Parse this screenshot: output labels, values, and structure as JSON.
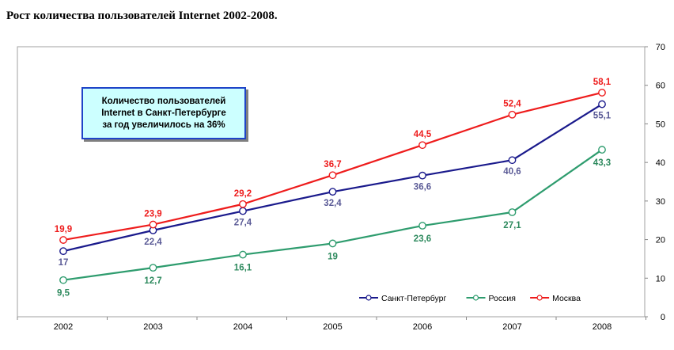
{
  "page": {
    "title": "Рост количества пользователей Internet 2002-2008."
  },
  "callout": {
    "lines": [
      "Количество пользователей",
      "Internet в Санкт-Петербурге",
      "за год увеличилось на 36%"
    ]
  },
  "chart_data": {
    "type": "line",
    "x": [
      "2002",
      "2003",
      "2004",
      "2005",
      "2006",
      "2007",
      "2008"
    ],
    "ylim": [
      0,
      70
    ],
    "yticks": [
      0,
      10,
      20,
      30,
      40,
      50,
      60,
      70
    ],
    "y_axis_side": "right",
    "grid": false,
    "legend_placement": "bottom-right",
    "series": [
      {
        "name": "Санкт-Петербург",
        "color": "#1a1a8c",
        "label_color": "#5a5a96",
        "values": [
          17,
          22.4,
          27.4,
          32.4,
          36.6,
          40.6,
          55.1
        ],
        "labels": [
          "17",
          "22,4",
          "27,4",
          "32,4",
          "36,6",
          "40,6",
          "55,1"
        ]
      },
      {
        "name": "Россия",
        "color": "#2e9c6e",
        "label_color": "#2e8a5e",
        "values": [
          9.5,
          12.7,
          16.1,
          19,
          23.6,
          27.1,
          43.3
        ],
        "labels": [
          "9,5",
          "12,7",
          "16,1",
          "19",
          "23,6",
          "27,1",
          "43,3"
        ]
      },
      {
        "name": "Москва",
        "color": "#ee1c1c",
        "label_color": "#ee1c1c",
        "values": [
          19.9,
          23.9,
          29.2,
          36.7,
          44.5,
          52.4,
          58.1
        ],
        "labels": [
          "19,9",
          "23,9",
          "29,2",
          "36,7",
          "44,5",
          "52,4",
          "58,1"
        ]
      }
    ]
  }
}
